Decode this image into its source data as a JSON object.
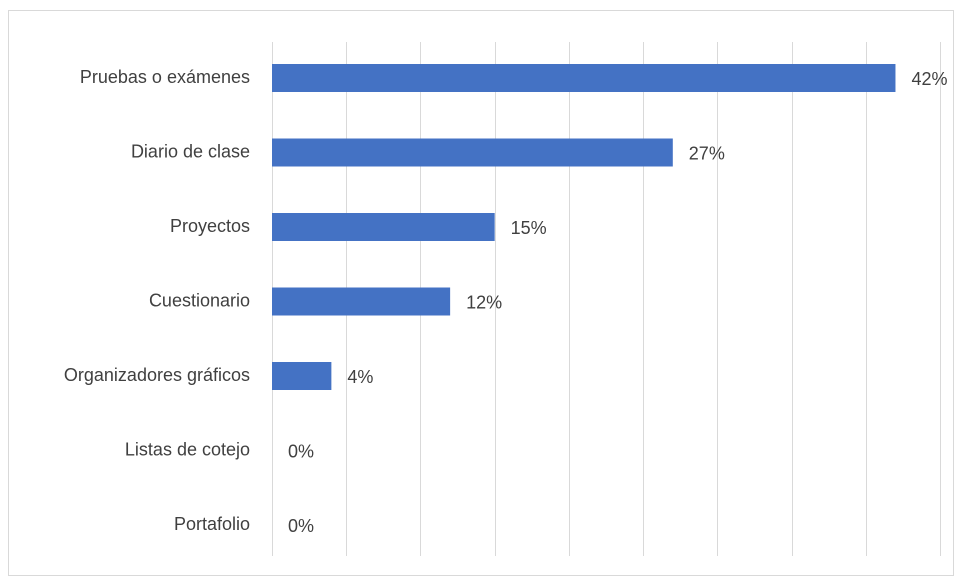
{
  "chart_data": {
    "type": "bar",
    "orientation": "horizontal",
    "title": "",
    "xlabel": "",
    "ylabel": "",
    "categories": [
      "Pruebas o exámenes",
      "Diario de clase",
      "Proyectos",
      "Cuestionario",
      "Organizadores gráficos",
      "Listas de cotejo",
      "Portafolio"
    ],
    "values": [
      42,
      27,
      15,
      12,
      4,
      0,
      0
    ],
    "data_labels": [
      "42%",
      "27%",
      "15%",
      "12%",
      "4%",
      "0%",
      "0%"
    ],
    "xlim": [
      0,
      45
    ],
    "grid": "vertical",
    "legend": "none",
    "bar_color": "#4472c4"
  }
}
